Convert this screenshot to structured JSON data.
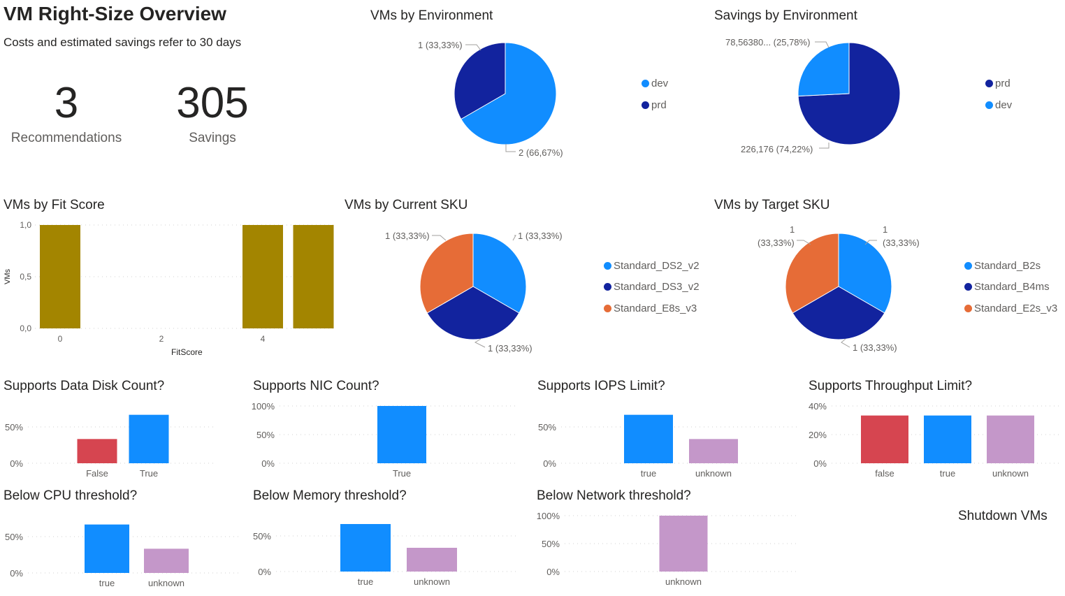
{
  "header": {
    "title": "VM Right-Size Overview",
    "subtitle": "Costs and estimated savings refer to 30 days"
  },
  "kpis": [
    {
      "value": "3",
      "label": "Recommendations"
    },
    {
      "value": "305",
      "label": "Savings"
    }
  ],
  "shutdown_title": "Shutdown VMs",
  "colors": {
    "light_blue": "#118DFF",
    "dark_blue": "#12239E",
    "orange": "#E66C37",
    "olive": "#A38500",
    "red": "#D64550",
    "purple": "#C497C9"
  },
  "chart_data": [
    {
      "type": "bar",
      "title": "VMs by Fit Score",
      "xlabel": "FitScore",
      "ylabel": "VMs",
      "x": [
        0,
        4,
        5
      ],
      "values": [
        1,
        1,
        1
      ],
      "xticks": [
        "0",
        "2",
        "4"
      ],
      "yticks": [
        "0,0",
        "0,5",
        "1,0"
      ],
      "ylim": [
        0,
        1
      ],
      "grid": true,
      "color": "#A38500"
    },
    {
      "type": "pie",
      "title": "VMs by Environment",
      "slices": [
        {
          "name": "dev",
          "value": 2,
          "label": "2 (66,67%)",
          "color": "#118DFF"
        },
        {
          "name": "prd",
          "value": 1,
          "label": "1 (33,33%)",
          "color": "#12239E"
        }
      ],
      "legend": "right"
    },
    {
      "type": "pie",
      "title": "Savings by Environment",
      "slices": [
        {
          "name": "prd",
          "value": 226.176,
          "label": "226,176 (74,22%)",
          "color": "#12239E"
        },
        {
          "name": "dev",
          "value": 78.5638,
          "label": "78,56380... (25,78%)",
          "color": "#118DFF"
        }
      ],
      "legend": "right"
    },
    {
      "type": "pie",
      "title": "VMs by Current SKU",
      "slices": [
        {
          "name": "Standard_DS2_v2",
          "value": 1,
          "label": "1 (33,33%)",
          "color": "#118DFF"
        },
        {
          "name": "Standard_DS3_v2",
          "value": 1,
          "label": "1 (33,33%)",
          "color": "#12239E"
        },
        {
          "name": "Standard_E8s_v3",
          "value": 1,
          "label": "1 (33,33%)",
          "color": "#E66C37"
        }
      ],
      "legend": "right"
    },
    {
      "type": "pie",
      "title": "VMs by Target SKU",
      "slices": [
        {
          "name": "Standard_B2s",
          "value": 1,
          "label": "1 (33,33%)",
          "label_value": "1",
          "label_pct": "(33,33%)",
          "color": "#118DFF"
        },
        {
          "name": "Standard_B4ms",
          "value": 1,
          "label": "1 (33,33%)",
          "color": "#12239E"
        },
        {
          "name": "Standard_E2s_v3",
          "value": 1,
          "label": "1 (33,33%)",
          "label_value": "1",
          "label_pct": "(33,33%)",
          "color": "#E66C37"
        }
      ],
      "legend": "right"
    },
    {
      "type": "bar",
      "title": "Supports Data Disk Count?",
      "categories": [
        "False",
        "True"
      ],
      "values": [
        0.3333,
        0.6667
      ],
      "colors": [
        "#D64550",
        "#118DFF"
      ],
      "yticks": [
        "0%",
        "50%"
      ],
      "grid": true
    },
    {
      "type": "bar",
      "title": "Supports NIC Count?",
      "categories": [
        "True"
      ],
      "values": [
        1.0
      ],
      "colors": [
        "#118DFF"
      ],
      "yticks": [
        "0%",
        "50%",
        "100%"
      ],
      "grid": true
    },
    {
      "type": "bar",
      "title": "Supports IOPS Limit?",
      "categories": [
        "true",
        "unknown"
      ],
      "values": [
        0.6667,
        0.3333
      ],
      "colors": [
        "#118DFF",
        "#C497C9"
      ],
      "yticks": [
        "0%",
        "50%"
      ],
      "grid": true
    },
    {
      "type": "bar",
      "title": "Supports Throughput Limit?",
      "categories": [
        "false",
        "true",
        "unknown"
      ],
      "values": [
        0.3333,
        0.3333,
        0.3333
      ],
      "colors": [
        "#D64550",
        "#118DFF",
        "#C497C9"
      ],
      "yticks": [
        "0%",
        "20%",
        "40%"
      ],
      "grid": true
    },
    {
      "type": "bar",
      "title": "Below CPU threshold?",
      "categories": [
        "true",
        "unknown"
      ],
      "values": [
        0.6667,
        0.3333
      ],
      "colors": [
        "#118DFF",
        "#C497C9"
      ],
      "yticks": [
        "0%",
        "50%"
      ],
      "grid": true
    },
    {
      "type": "bar",
      "title": "Below Memory threshold?",
      "categories": [
        "true",
        "unknown"
      ],
      "values": [
        0.6667,
        0.3333
      ],
      "colors": [
        "#118DFF",
        "#C497C9"
      ],
      "yticks": [
        "0%",
        "50%"
      ],
      "grid": true
    },
    {
      "type": "bar",
      "title": "Below Network threshold?",
      "categories": [
        "unknown"
      ],
      "values": [
        1.0
      ],
      "colors": [
        "#C497C9"
      ],
      "yticks": [
        "0%",
        "50%",
        "100%"
      ],
      "grid": true
    }
  ]
}
